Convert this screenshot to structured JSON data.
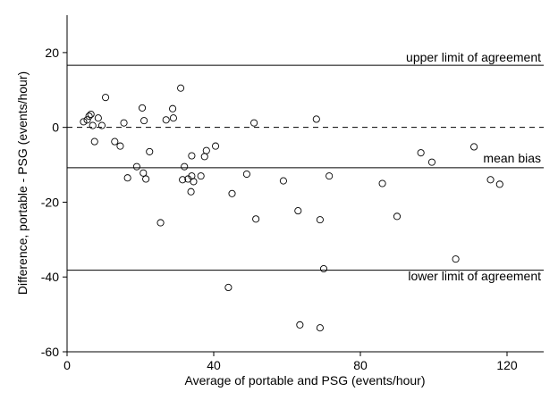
{
  "chart_data": {
    "type": "scatter",
    "title": "",
    "xlabel": "Average of portable and PSG (events/hour)",
    "ylabel": "Difference, portable - PSG (events/hour)",
    "xlim": [
      0,
      130
    ],
    "ylim": [
      -60,
      30
    ],
    "x_ticks": [
      0,
      40,
      80,
      120
    ],
    "y_ticks": [
      -60,
      -40,
      -20,
      0,
      20
    ],
    "grid": false,
    "marker": "hollow circle",
    "reference_lines": [
      {
        "name": "upper",
        "label": "upper limit of agreement",
        "y": 16.6,
        "style": "solid"
      },
      {
        "name": "zero",
        "label": "",
        "y": 0,
        "style": "dashed"
      },
      {
        "name": "bias",
        "label": "mean bias",
        "y": -10.8,
        "style": "solid"
      },
      {
        "name": "lower",
        "label": "lower limit of agreement",
        "y": -38.2,
        "style": "solid"
      }
    ],
    "points": [
      [
        4.5,
        1.5
      ],
      [
        5.5,
        2.0
      ],
      [
        6.0,
        3.0
      ],
      [
        6.5,
        3.5
      ],
      [
        7.0,
        0.5
      ],
      [
        7.5,
        -3.8
      ],
      [
        8.5,
        2.5
      ],
      [
        9.5,
        0.5
      ],
      [
        10.5,
        8.0
      ],
      [
        13.0,
        -3.8
      ],
      [
        14.5,
        -5.0
      ],
      [
        15.5,
        1.2
      ],
      [
        16.5,
        -13.5
      ],
      [
        19.0,
        -10.5
      ],
      [
        20.5,
        5.2
      ],
      [
        20.8,
        -12.2
      ],
      [
        21.0,
        1.8
      ],
      [
        21.5,
        -13.8
      ],
      [
        22.5,
        -6.5
      ],
      [
        25.5,
        -25.5
      ],
      [
        27.0,
        2.0
      ],
      [
        28.8,
        5.0
      ],
      [
        29.0,
        2.5
      ],
      [
        31.0,
        10.5
      ],
      [
        31.5,
        -14.0
      ],
      [
        32.0,
        -10.5
      ],
      [
        33.0,
        -13.8
      ],
      [
        33.8,
        -17.2
      ],
      [
        34.0,
        -7.6
      ],
      [
        34.0,
        -13.0
      ],
      [
        34.5,
        -14.5
      ],
      [
        36.5,
        -13.0
      ],
      [
        37.5,
        -7.8
      ],
      [
        38.0,
        -6.2
      ],
      [
        40.5,
        -5.0
      ],
      [
        44.0,
        -42.8
      ],
      [
        45.0,
        -17.7
      ],
      [
        49.0,
        -12.5
      ],
      [
        51.0,
        1.2
      ],
      [
        51.5,
        -24.5
      ],
      [
        59.0,
        -14.3
      ],
      [
        63.0,
        -22.3
      ],
      [
        63.5,
        -52.8
      ],
      [
        68.0,
        2.2
      ],
      [
        69.0,
        -24.7
      ],
      [
        69.0,
        -53.6
      ],
      [
        70.0,
        -37.8
      ],
      [
        71.5,
        -13.0
      ],
      [
        86.0,
        -15.0
      ],
      [
        90.0,
        -23.8
      ],
      [
        96.5,
        -6.8
      ],
      [
        99.5,
        -9.3
      ],
      [
        106.0,
        -35.2
      ],
      [
        111.0,
        -5.2
      ],
      [
        115.5,
        -14.0
      ],
      [
        118.0,
        -15.2
      ]
    ]
  }
}
